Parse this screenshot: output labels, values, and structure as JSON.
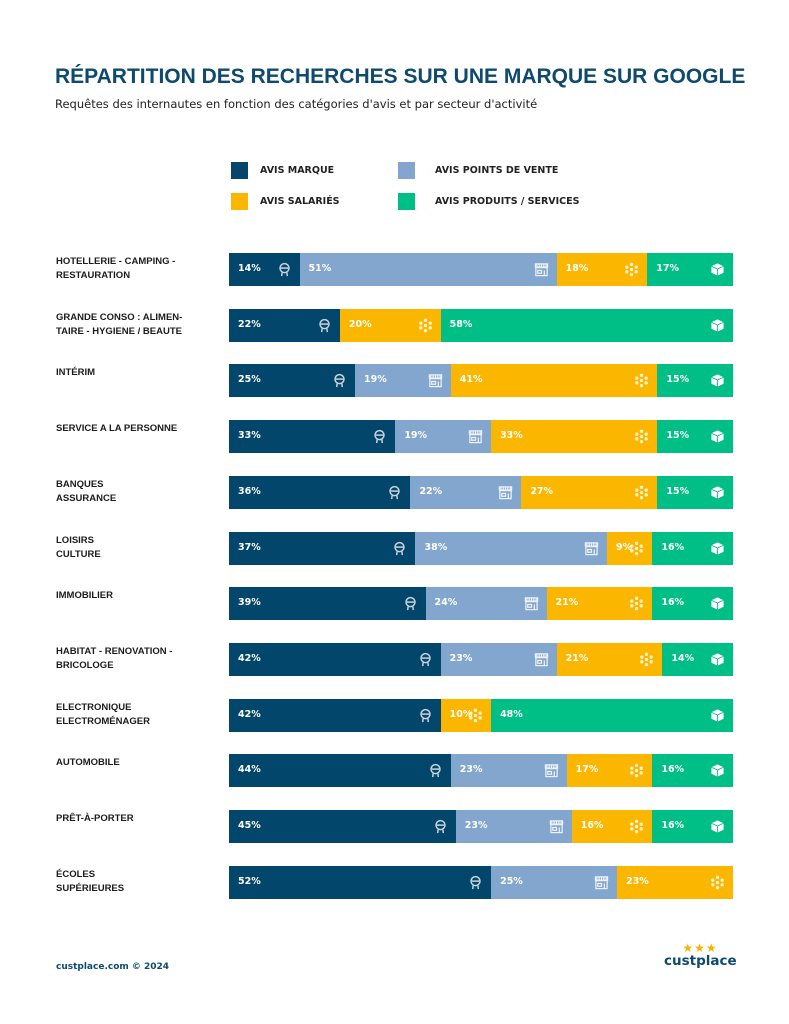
{
  "chart_data": {
    "type": "bar",
    "orientation": "horizontal",
    "stacked": true,
    "title": "RÉPARTITION DES RECHERCHES SUR UNE MARQUE SUR GOOGLE",
    "subtitle": "Requêtes des internautes en fonction des catégories d'avis et par secteur d'activité",
    "legend_position": "top",
    "grid": false,
    "unit": "%",
    "categories": [
      "HOTELLERIE - CAMPING -\nRESTAURATION",
      "GRANDE CONSO : ALIMEN-\nTAIRE - HYGIENE / BEAUTE",
      "INTÉRIM",
      "SERVICE A LA PERSONNE",
      "BANQUES\nASSURANCE",
      "LOISIRS\nCULTURE",
      "IMMOBILIER",
      "HABITAT - RENOVATION -\nBRICOLOGE",
      "ELECTRONIQUE\nELECTROMÉNAGER",
      "AUTOMOBILE",
      "PRÊT-À-PORTER",
      "ÉCOLES\nSUPÉRIEURES"
    ],
    "series": [
      {
        "name": "AVIS MARQUE",
        "color": "#03466b",
        "icon": "medal-icon",
        "values": [
          14,
          22,
          25,
          33,
          36,
          37,
          39,
          42,
          42,
          44,
          45,
          52
        ]
      },
      {
        "name": "AVIS POINTS DE VENTE",
        "color": "#82a6cd",
        "icon": "store-icon",
        "values": [
          51,
          null,
          19,
          19,
          22,
          38,
          24,
          23,
          null,
          23,
          23,
          25
        ]
      },
      {
        "name": "AVIS SALARIÉS",
        "color": "#fbb600",
        "icon": "people-network-icon",
        "values": [
          18,
          20,
          41,
          33,
          27,
          9,
          21,
          21,
          10,
          17,
          16,
          23
        ]
      },
      {
        "name": "AVIS PRODUITS / SERVICES",
        "color": "#00bf86",
        "icon": "box-icon",
        "values": [
          17,
          58,
          15,
          15,
          15,
          16,
          16,
          14,
          48,
          16,
          16,
          null
        ]
      }
    ]
  },
  "footer": {
    "copyright": "custplace.com © 2024"
  },
  "logo": {
    "text": "custplace",
    "stars": "★★★"
  }
}
